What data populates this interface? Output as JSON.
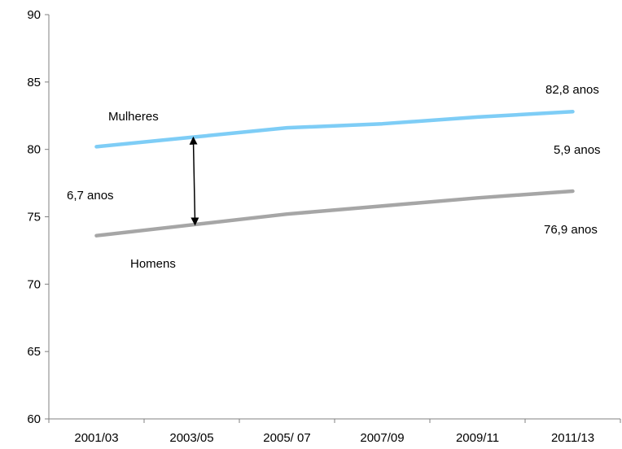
{
  "chart_data": {
    "type": "line",
    "title": "",
    "xlabel": "",
    "ylabel": "",
    "categories": [
      "2001/03",
      "2003/05",
      "2005/ 07",
      "2007/09",
      "2009/11",
      "2011/13"
    ],
    "ylim": [
      60,
      90
    ],
    "yticks": [
      "60",
      "65",
      "70",
      "75",
      "80",
      "85",
      "90"
    ],
    "grid": false,
    "series": [
      {
        "name": "Mulheres",
        "color": "#7ecdf6",
        "values": [
          80.2,
          80.9,
          81.6,
          81.9,
          82.4,
          82.8
        ]
      },
      {
        "name": "Homens",
        "color": "#a6a6a6",
        "values": [
          73.6,
          74.4,
          75.2,
          75.8,
          76.4,
          76.9
        ]
      }
    ],
    "annotations": {
      "women_label": "Mulheres",
      "men_label": "Homens",
      "women_end": "82,8  anos",
      "men_end": "76,9  anos",
      "gap_start": "6,7 anos",
      "gap_end": "5,9 anos"
    }
  }
}
